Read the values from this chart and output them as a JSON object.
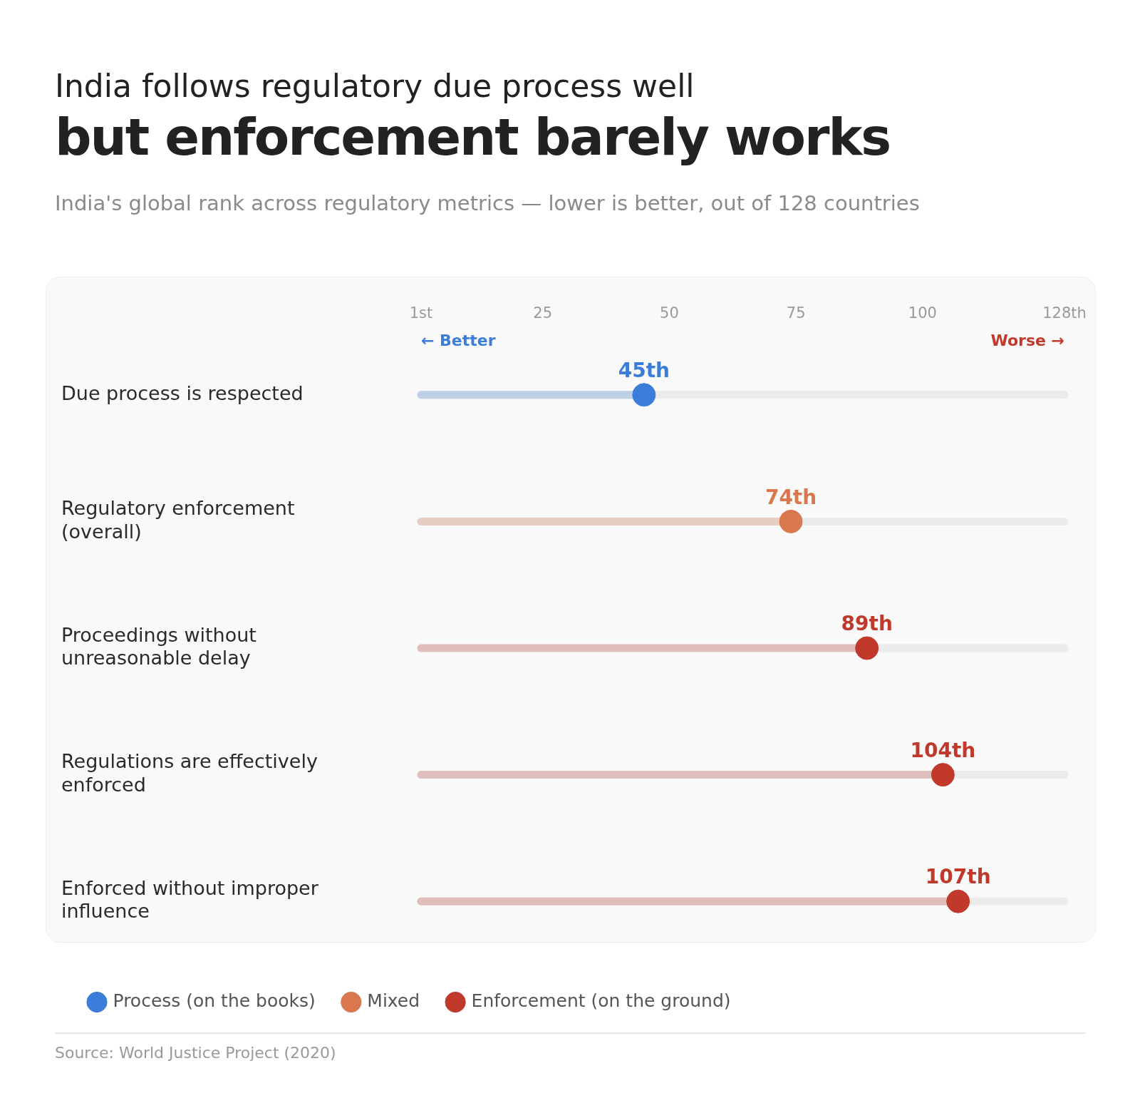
{
  "chart_data": {
    "type": "lollipop",
    "orientation": "horizontal",
    "title": "India follows regulatory due process well",
    "subtitle": "but enforcement barely works",
    "annotations": [
      "India's global rank across regulatory metrics — lower is better, out of 128 countries",
      "← Better",
      "Worse →",
      "Source: World Justice Project (2020)"
    ],
    "categories": [
      "Due process is respected",
      "Regulatory enforcement (overall)",
      "Proceedings without unreasonable delay",
      "Regulations are effectively enforced",
      "Enforced without improper influence"
    ],
    "series": [
      {
        "name": "Process (on the books)",
        "color": "#3b7dd8",
        "values": [
          45,
          null,
          null,
          null,
          null
        ],
        "value_labels": [
          "45th",
          null,
          null,
          null,
          null
        ]
      },
      {
        "name": "Mixed",
        "color": "#d9784f",
        "values": [
          null,
          74,
          null,
          null,
          null
        ],
        "value_labels": [
          null,
          "74th",
          null,
          null,
          null
        ]
      },
      {
        "name": "Enforcement (on the ground)",
        "color": "#c0392b",
        "values": [
          null,
          null,
          89,
          104,
          107
        ],
        "value_labels": [
          null,
          null,
          "89th",
          "104th",
          "107th"
        ]
      }
    ],
    "xlim": [
      1,
      128
    ],
    "xticks": [
      {
        "value": 1,
        "label": "1st"
      },
      25,
      50,
      75,
      100,
      {
        "value": 128,
        "label": "128th"
      }
    ],
    "legend": "bottom left",
    "marker": "circle",
    "grid": "y"
  }
}
